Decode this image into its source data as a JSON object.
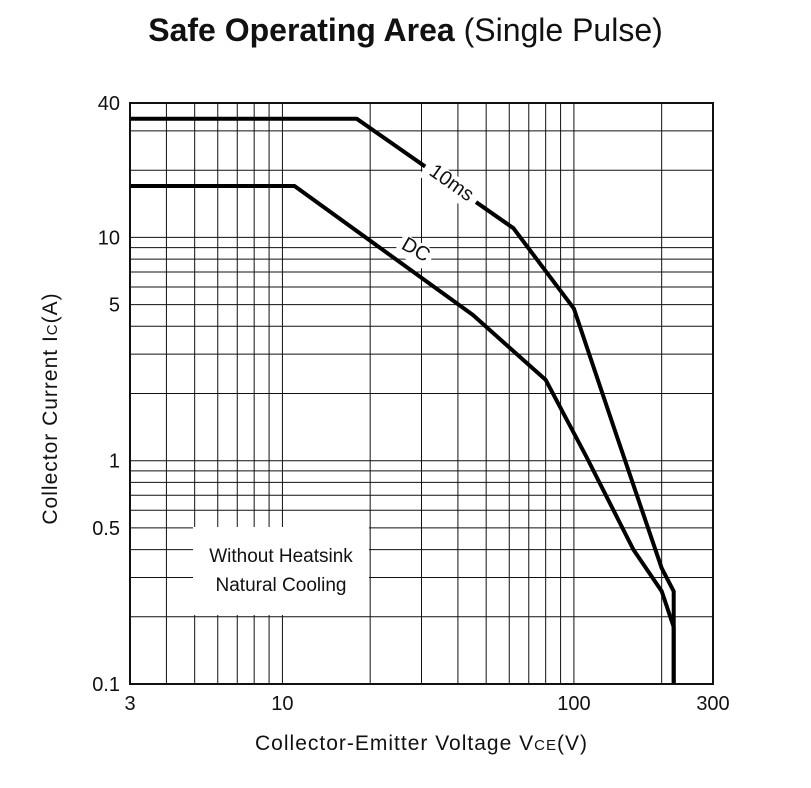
{
  "title_bold": "Safe Operating Area",
  "title_rest": "(Single Pulse)",
  "note_lines": [
    "Without Heatsink",
    "Natural Cooling"
  ],
  "chart_data": {
    "type": "line",
    "title": "Safe Operating Area (Single Pulse)",
    "xlabel": "Collector-Emitter Voltage V",
    "xlabel_sub": "CE",
    "xlabel_unit": "(V)",
    "ylabel": "Collector Current I",
    "ylabel_sub": "C",
    "ylabel_unit": "(A)",
    "x_scale": "log",
    "y_scale": "log",
    "xlim": [
      3,
      300
    ],
    "ylim": [
      0.1,
      40
    ],
    "x_ticks": [
      3,
      10,
      100,
      300
    ],
    "x_tick_labels": [
      "3",
      "10",
      "100",
      "300"
    ],
    "y_ticks": [
      0.1,
      0.5,
      1,
      5,
      10,
      40
    ],
    "y_tick_labels": [
      "0.1",
      "0.5",
      "1",
      "5",
      "10",
      "40"
    ],
    "grid": true,
    "grid_x_minor": [
      4,
      5,
      6,
      7,
      8,
      9,
      20,
      30,
      40,
      50,
      60,
      70,
      80,
      90,
      200
    ],
    "grid_y_minor": [
      0.2,
      0.3,
      0.4,
      0.5,
      0.6,
      0.7,
      0.8,
      0.9,
      2,
      3,
      4,
      5,
      6,
      7,
      8,
      9,
      20,
      30
    ],
    "series": [
      {
        "name": "10ms",
        "x": [
          3,
          18,
          62,
          100,
          140,
          200,
          220,
          220
        ],
        "y": [
          34,
          34,
          11,
          4.8,
          1.3,
          0.33,
          0.26,
          0.1
        ]
      },
      {
        "name": "DC",
        "x": [
          3,
          11,
          45,
          80,
          110,
          160,
          200,
          220,
          220
        ],
        "y": [
          17,
          17,
          4.5,
          2.3,
          1.05,
          0.4,
          0.26,
          0.18,
          0.1
        ]
      }
    ]
  }
}
